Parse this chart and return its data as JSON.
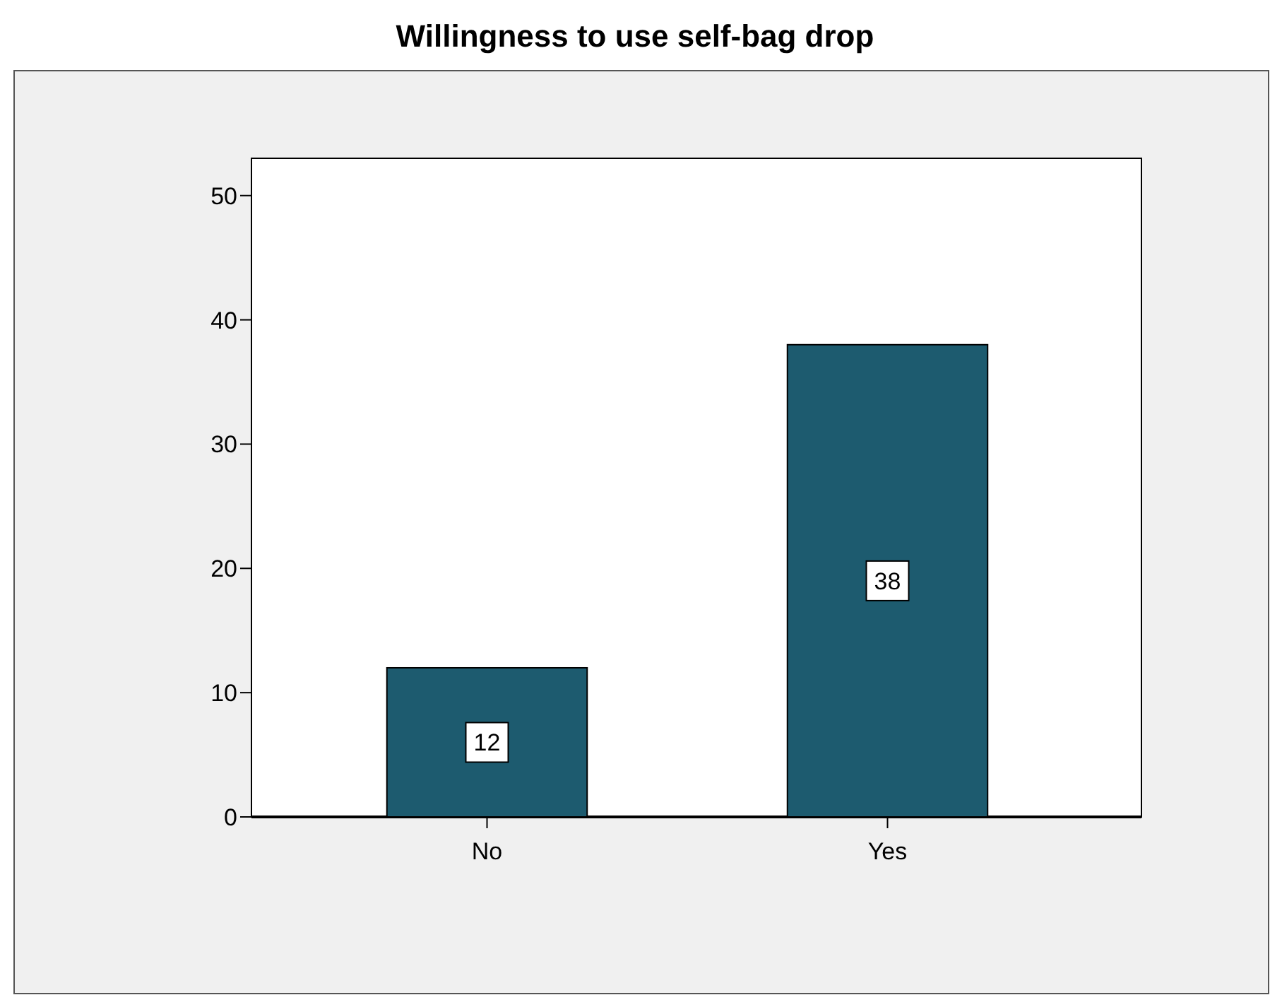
{
  "chart_data": {
    "type": "bar",
    "title": "Willingness to use self-bag drop",
    "categories": [
      "No",
      "Yes"
    ],
    "values": [
      12,
      38
    ],
    "color": "#1d5b6f",
    "ylim": [
      0,
      53
    ],
    "yticks": [
      0,
      10,
      20,
      30,
      40,
      50
    ],
    "grid": false,
    "data_labels": true
  }
}
